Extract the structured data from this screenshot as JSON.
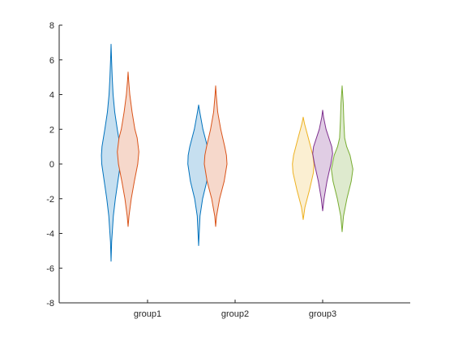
{
  "chart_data": {
    "type": "violin",
    "title": "",
    "xlabel": "",
    "ylabel": "",
    "ylim": [
      -8,
      8
    ],
    "yticks": [
      -8,
      -6,
      -4,
      -2,
      0,
      2,
      4,
      6,
      8
    ],
    "categories": [
      "group1",
      "group2",
      "group3"
    ],
    "grid": false,
    "legend": "none",
    "violins": [
      {
        "group": "group1",
        "color": "#0072BD",
        "fill": "#C6DFF0",
        "min": -5.6,
        "max": 6.9,
        "profile": [
          [
            -5.6,
            0.0
          ],
          [
            -4.5,
            0.05
          ],
          [
            -3,
            0.2
          ],
          [
            -2,
            0.38
          ],
          [
            -1,
            0.6
          ],
          [
            0,
            0.82
          ],
          [
            0.5,
            0.85
          ],
          [
            1,
            0.8
          ],
          [
            2,
            0.55
          ],
          [
            3,
            0.32
          ],
          [
            4,
            0.18
          ],
          [
            5,
            0.1
          ],
          [
            6,
            0.04
          ],
          [
            6.9,
            0.0
          ]
        ]
      },
      {
        "group": "group1",
        "color": "#D95319",
        "fill": "#F6D8CB",
        "min": -3.6,
        "max": 5.3,
        "profile": [
          [
            -3.6,
            0.0
          ],
          [
            -3,
            0.08
          ],
          [
            -2,
            0.28
          ],
          [
            -1,
            0.55
          ],
          [
            0,
            0.85
          ],
          [
            0.7,
            0.95
          ],
          [
            1.5,
            0.8
          ],
          [
            2,
            0.6
          ],
          [
            3,
            0.35
          ],
          [
            4,
            0.15
          ],
          [
            4.8,
            0.05
          ],
          [
            5.3,
            0.0
          ]
        ]
      },
      {
        "group": "group2",
        "color": "#0072BD",
        "fill": "#C6DFF0",
        "min": -4.7,
        "max": 3.4,
        "profile": [
          [
            -4.7,
            0.0
          ],
          [
            -4,
            0.05
          ],
          [
            -3,
            0.12
          ],
          [
            -2,
            0.35
          ],
          [
            -1,
            0.72
          ],
          [
            0,
            0.95
          ],
          [
            0.5,
            0.92
          ],
          [
            1,
            0.78
          ],
          [
            2,
            0.38
          ],
          [
            3,
            0.1
          ],
          [
            3.4,
            0.0
          ]
        ]
      },
      {
        "group": "group2",
        "color": "#D95319",
        "fill": "#F6D8CB",
        "min": -3.6,
        "max": 4.5,
        "profile": [
          [
            -3.6,
            0.0
          ],
          [
            -3,
            0.08
          ],
          [
            -2,
            0.35
          ],
          [
            -1,
            0.75
          ],
          [
            0,
            1.0
          ],
          [
            0.5,
            0.95
          ],
          [
            1,
            0.8
          ],
          [
            2,
            0.45
          ],
          [
            3,
            0.18
          ],
          [
            4,
            0.05
          ],
          [
            4.5,
            0.0
          ]
        ]
      },
      {
        "group": "group3",
        "color": "#EDB120",
        "fill": "#FBEFD2",
        "min": -3.2,
        "max": 2.7,
        "profile": [
          [
            -3.2,
            0.0
          ],
          [
            -2.5,
            0.15
          ],
          [
            -1.5,
            0.55
          ],
          [
            -0.5,
            0.9
          ],
          [
            0,
            0.95
          ],
          [
            0.5,
            0.85
          ],
          [
            1.5,
            0.45
          ],
          [
            2.3,
            0.12
          ],
          [
            2.7,
            0.0
          ]
        ]
      },
      {
        "group": "group3",
        "color": "#7E2F8E",
        "fill": "#E0CDE4",
        "min": -2.7,
        "max": 3.1,
        "profile": [
          [
            -2.7,
            0.0
          ],
          [
            -2,
            0.12
          ],
          [
            -1,
            0.38
          ],
          [
            0,
            0.72
          ],
          [
            0.6,
            0.88
          ],
          [
            1,
            0.8
          ],
          [
            2,
            0.3
          ],
          [
            2.7,
            0.08
          ],
          [
            3.1,
            0.0
          ]
        ]
      },
      {
        "group": "group3",
        "color": "#77AC30",
        "fill": "#DEEACE",
        "min": -3.9,
        "max": 4.5,
        "profile": [
          [
            -3.9,
            0.0
          ],
          [
            -3,
            0.12
          ],
          [
            -2,
            0.42
          ],
          [
            -1,
            0.8
          ],
          [
            -0.3,
            0.95
          ],
          [
            0.5,
            0.7
          ],
          [
            1,
            0.4
          ],
          [
            1.5,
            0.22
          ],
          [
            2.5,
            0.15
          ],
          [
            3.5,
            0.1
          ],
          [
            4.5,
            0.0
          ]
        ]
      }
    ]
  }
}
